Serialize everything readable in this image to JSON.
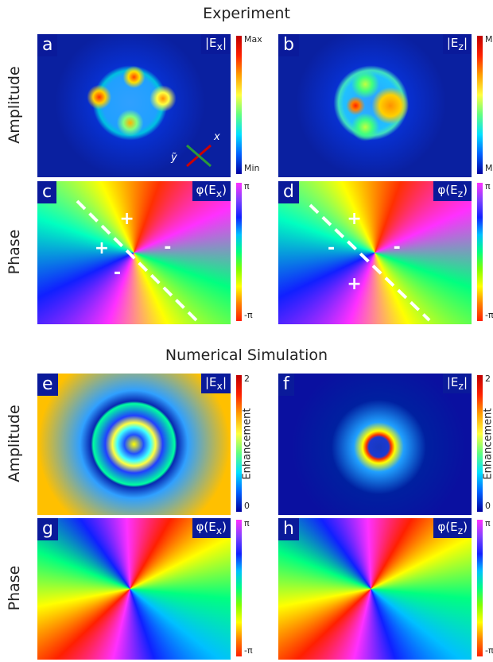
{
  "sections": [
    {
      "title": "Experiment",
      "rows": [
        {
          "label": "Amplitude",
          "panels": [
            {
              "letter": "a",
              "field": [
                "|E",
                "x",
                "|"
              ],
              "colorbar": [
                "Max",
                "Min"
              ],
              "axes": [
                "x",
                "ỹ"
              ]
            },
            {
              "letter": "b",
              "field": [
                "|E",
                "z",
                "|"
              ],
              "colorbar": [
                "Max",
                "Min"
              ]
            }
          ]
        },
        {
          "label": "Phase",
          "panels": [
            {
              "letter": "c",
              "field": [
                "φ(E",
                "x",
                ")"
              ],
              "colorbar": [
                "π",
                "-π"
              ],
              "signs": [
                "+",
                "+",
                "-",
                "-"
              ]
            },
            {
              "letter": "d",
              "field": [
                "φ(E",
                "z",
                ")"
              ],
              "colorbar": [
                "π",
                "-π"
              ],
              "signs": [
                "+",
                "-",
                "-",
                "+"
              ]
            }
          ]
        }
      ]
    },
    {
      "title": "Numerical Simulation",
      "rows": [
        {
          "label": "Amplitude",
          "panels": [
            {
              "letter": "e",
              "field": [
                "|E",
                "x",
                "|"
              ],
              "colorbar": [
                "2",
                "0"
              ],
              "colorbar_label": "Enhancement"
            },
            {
              "letter": "f",
              "field": [
                "|E",
                "z",
                "|"
              ],
              "colorbar": [
                "2",
                "0"
              ],
              "colorbar_label": "Enhancement"
            }
          ]
        },
        {
          "label": "Phase",
          "panels": [
            {
              "letter": "g",
              "field": [
                "φ(E",
                "x",
                ")"
              ],
              "colorbar": [
                "π",
                "-π"
              ]
            },
            {
              "letter": "h",
              "field": [
                "φ(E",
                "z",
                ")"
              ],
              "colorbar": [
                "π",
                "-π"
              ]
            }
          ]
        }
      ]
    }
  ]
}
